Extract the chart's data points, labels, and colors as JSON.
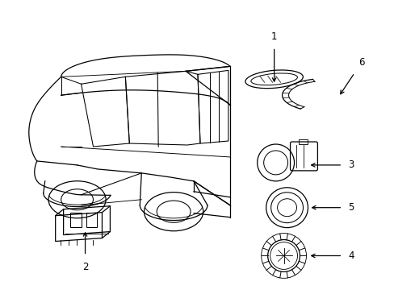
{
  "background_color": "#ffffff",
  "line_color": "#000000",
  "fig_width": 4.89,
  "fig_height": 3.6,
  "dpi": 100,
  "lw": 0.9
}
